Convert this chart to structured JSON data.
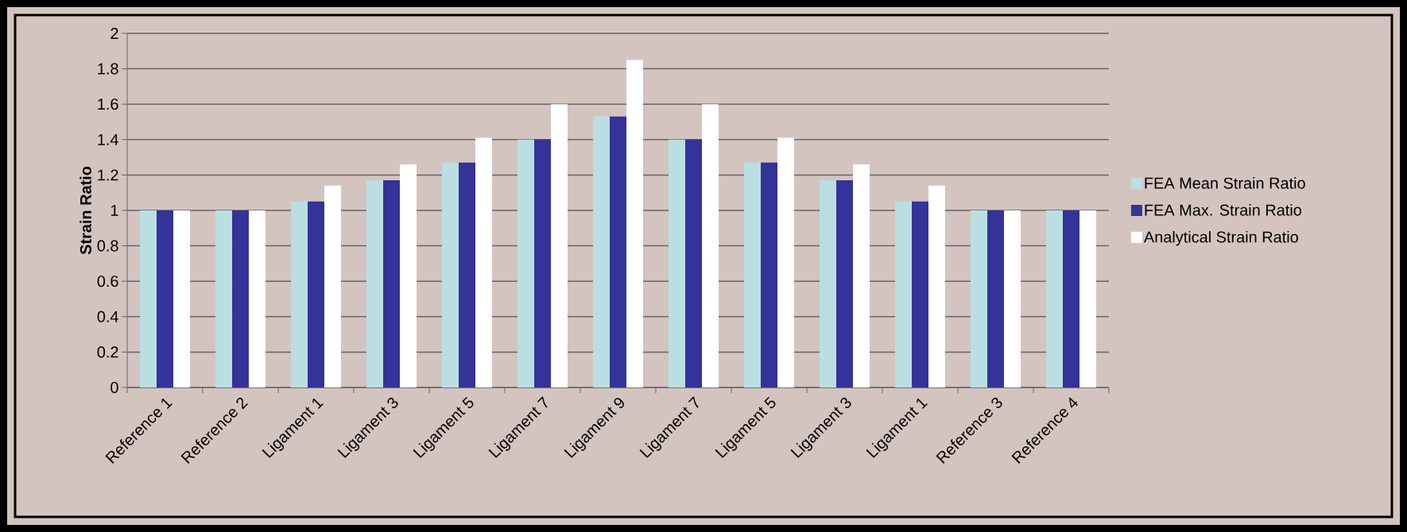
{
  "chart_data": {
    "type": "bar",
    "ylabel": "Strain Ratio",
    "categories": [
      "Reference 1",
      "Reference 2",
      "Ligament 1",
      "Ligament 3",
      "Ligament 5",
      "Ligament 7",
      "Ligament 9",
      "Ligament 7",
      "Ligament 5",
      "Ligament 3",
      "Ligament 1",
      "Reference 3",
      "Reference 4"
    ],
    "series": [
      {
        "name": "FEA Mean Strain Ratio",
        "color": "#b9dfe2",
        "values": [
          1,
          1,
          1.05,
          1.17,
          1.27,
          1.4,
          1.53,
          1.4,
          1.27,
          1.17,
          1.05,
          1,
          1
        ]
      },
      {
        "name": "FEA Max. Strain Ratio",
        "color": "#333399",
        "values": [
          1,
          1,
          1.05,
          1.17,
          1.27,
          1.4,
          1.53,
          1.4,
          1.27,
          1.17,
          1.05,
          1,
          1
        ]
      },
      {
        "name": "Analytical Strain Ratio",
        "color": "#ffffff",
        "values": [
          1,
          1,
          1.14,
          1.26,
          1.41,
          1.6,
          1.85,
          1.6,
          1.41,
          1.26,
          1.14,
          1,
          1
        ]
      }
    ],
    "ylim": [
      0,
      2
    ],
    "yticks": [
      0,
      0.2,
      0.4,
      0.6,
      0.8,
      1,
      1.2,
      1.4,
      1.6,
      1.8,
      2
    ],
    "grid": "y",
    "legend": "right"
  }
}
